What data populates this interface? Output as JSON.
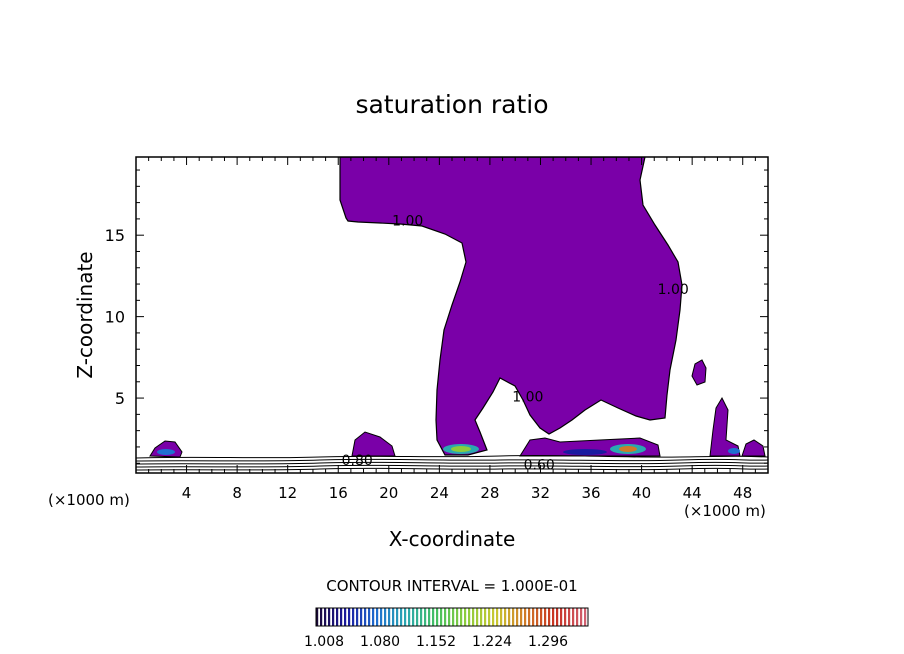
{
  "chart_data": {
    "type": "contour",
    "title": "saturation ratio",
    "xlabel": "X-coordinate",
    "ylabel": "Z-coordinate",
    "x_unit_left": "(×1000 m)",
    "x_unit_right": "(×1000 m)",
    "xlim": [
      0,
      50
    ],
    "ylim": [
      0.4,
      19.8
    ],
    "x_ticks": [
      4,
      8,
      12,
      16,
      20,
      24,
      28,
      32,
      36,
      40,
      44,
      48
    ],
    "y_ticks": [
      5,
      10,
      15
    ],
    "contour_labels": [
      {
        "text": "1.00",
        "x": 21.5,
        "y": 15.6
      },
      {
        "text": "1.00",
        "x": 42.5,
        "y": 11.4
      },
      {
        "text": "1.00",
        "x": 31.0,
        "y": 4.8
      },
      {
        "text": "0.80",
        "x": 17.5,
        "y": 0.9
      },
      {
        "text": "0.60",
        "x": 31.9,
        "y": 0.6
      }
    ],
    "contour_interval_label": "CONTOUR INTERVAL = 1.000E-01",
    "colorbar_ticks": [
      "1.008",
      "1.080",
      "1.152",
      "1.224",
      "1.296"
    ],
    "fill_color": "#7a00a8",
    "colorbar_colors": [
      "#1b0a3a",
      "#1a1aa0",
      "#1f6fd0",
      "#2aa8b0",
      "#44c060",
      "#8ccc3c",
      "#c8c830",
      "#d07a28",
      "#c83020",
      "#d06070"
    ]
  }
}
